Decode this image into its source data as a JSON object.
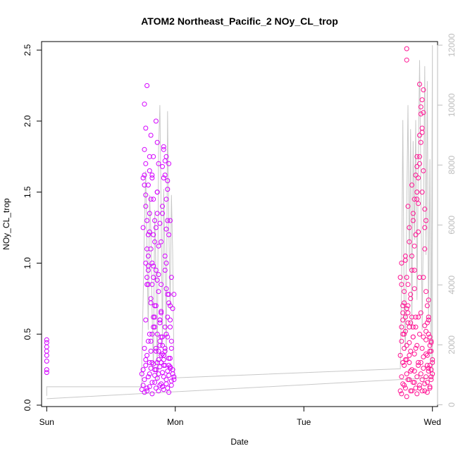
{
  "chart_data": {
    "type": "scatter",
    "title": "ATOM2 Northeast_Pacific_2 NOy_CL_trop",
    "xlabel": "Date",
    "ylabel": "NOy_CL_trop",
    "x_tick_labels": [
      "Sun",
      "Mon",
      "Tue",
      "Wed"
    ],
    "x_ticks": [
      0,
      1,
      2,
      3
    ],
    "xlim": [
      -0.04,
      3.04
    ],
    "ylim": [
      -0.01,
      2.56
    ],
    "y_ticks": [
      0.0,
      0.5,
      1.0,
      1.5,
      2.0,
      2.5
    ],
    "y_tick_labels": [
      "0.0",
      "0.5",
      "1.0",
      "1.5",
      "2.0",
      "2.5"
    ],
    "y2_ticks": [
      0,
      2000,
      4000,
      6000,
      8000,
      10000,
      12000
    ],
    "y2_tick_labels": [
      "0",
      "2000",
      "4000",
      "6000",
      "8000",
      "10000",
      "12000"
    ],
    "y2lim": [
      -60,
      12120
    ],
    "grid": false,
    "colors": {
      "series_1": "#d400ff",
      "series_2": "#ff1493",
      "altitude_line": "#c8c8c8",
      "right_axis": "#bdbdbd"
    },
    "series": [
      {
        "color": "#d400ff",
        "x": [
          0.0,
          0.0,
          0.0,
          0.0,
          0.0,
          0.0,
          0.0,
          0.0,
          0.74,
          0.75,
          0.76,
          0.77,
          0.78,
          0.79,
          0.8,
          0.81,
          0.82,
          0.83,
          0.84,
          0.85,
          0.86,
          0.87,
          0.88,
          0.89,
          0.9,
          0.91,
          0.92,
          0.93,
          0.94,
          0.95,
          0.96,
          0.97,
          0.98,
          0.99,
          0.74,
          0.75,
          0.76,
          0.77,
          0.78,
          0.79,
          0.8,
          0.81,
          0.82,
          0.83,
          0.84,
          0.85,
          0.86,
          0.87,
          0.88,
          0.89,
          0.9,
          0.91,
          0.92,
          0.93,
          0.94,
          0.95,
          0.96,
          0.97,
          0.98,
          0.99,
          0.75,
          0.76,
          0.77,
          0.78,
          0.79,
          0.8,
          0.81,
          0.82,
          0.83,
          0.84,
          0.85,
          0.86,
          0.87,
          0.88,
          0.89,
          0.9,
          0.91,
          0.92,
          0.93,
          0.94,
          0.95,
          0.96,
          0.97,
          0.98,
          0.99,
          0.75,
          0.76,
          0.77,
          0.78,
          0.79,
          0.8,
          0.81,
          0.82,
          0.83,
          0.84,
          0.85,
          0.86,
          0.87,
          0.88,
          0.89,
          0.9,
          0.91,
          0.92,
          0.93,
          0.94,
          0.95,
          0.96,
          0.97,
          0.76,
          0.77,
          0.78,
          0.79,
          0.8,
          0.81,
          0.82,
          0.83,
          0.84,
          0.85,
          0.86,
          0.87,
          0.88,
          0.89,
          0.9,
          0.91,
          0.92,
          0.93,
          0.94,
          0.95,
          0.96,
          0.97,
          0.76,
          0.77,
          0.78,
          0.79,
          0.8,
          0.81,
          0.82,
          0.83,
          0.84,
          0.85,
          0.86,
          0.87,
          0.88,
          0.89,
          0.9,
          0.91,
          0.92,
          0.93,
          0.94,
          0.95,
          0.96,
          0.76,
          0.77,
          0.78,
          0.79,
          0.8,
          0.81,
          0.82,
          0.83,
          0.84,
          0.85,
          0.86,
          0.87,
          0.88,
          0.89,
          0.9,
          0.91,
          0.92,
          0.93,
          0.94,
          0.95,
          0.96,
          0.77,
          0.78,
          0.79,
          0.8,
          0.81,
          0.82,
          0.83,
          0.84,
          0.85,
          0.86,
          0.87,
          0.88,
          0.89,
          0.9,
          0.91,
          0.92,
          0.93,
          0.94,
          0.95
        ],
        "y": [
          0.46,
          0.44,
          0.41,
          0.38,
          0.35,
          0.31,
          0.25,
          0.23,
          0.22,
          0.25,
          0.18,
          0.28,
          0.12,
          0.2,
          0.22,
          0.26,
          0.16,
          0.29,
          0.21,
          0.25,
          0.19,
          0.22,
          0.27,
          0.15,
          0.23,
          0.2,
          0.28,
          0.18,
          0.24,
          0.21,
          0.26,
          0.17,
          0.22,
          0.2,
          0.11,
          0.14,
          0.09,
          0.32,
          0.1,
          0.45,
          0.13,
          0.38,
          0.08,
          0.55,
          0.16,
          0.12,
          0.3,
          0.1,
          0.14,
          0.35,
          0.13,
          0.11,
          0.4,
          0.15,
          0.12,
          0.09,
          0.33,
          0.14,
          0.25,
          0.18,
          1.25,
          1.55,
          1.7,
          0.9,
          1.05,
          1.35,
          0.75,
          0.85,
          1.2,
          0.7,
          0.95,
          1.5,
          0.8,
          0.6,
          0.65,
          1.4,
          1.8,
          0.55,
          0.5,
          1.3,
          0.72,
          0.6,
          0.4,
          0.68,
          0.78,
          1.6,
          1.8,
          1.95,
          1.1,
          0.98,
          1.65,
          1.45,
          1.0,
          1.75,
          0.62,
          1.25,
          1.85,
          0.92,
          0.58,
          1.15,
          1.68,
          1.6,
          1.05,
          0.82,
          1.58,
          1.2,
          0.7,
          0.45,
          2.12,
          1.4,
          1.3,
          1.55,
          1.75,
          1.9,
          1.6,
          0.98,
          1.15,
          2.0,
          1.5,
          1.7,
          1.28,
          0.85,
          1.35,
          1.82,
          1.72,
          1.45,
          1.52,
          1.7,
          1.3,
          0.9,
          0.4,
          0.6,
          0.85,
          0.95,
          0.3,
          0.72,
          0.5,
          1.45,
          1.3,
          0.38,
          0.88,
          1.12,
          0.42,
          0.66,
          0.48,
          0.35,
          0.95,
          1.0,
          0.62,
          0.78,
          0.55,
          1.62,
          1.48,
          2.25,
          1.2,
          0.5,
          1.1,
          1.62,
          0.62,
          0.25,
          0.7,
          1.35,
          0.32,
          0.45,
          0.3,
          0.36,
          0.28,
          1.62,
          1.75,
          0.48,
          0.33,
          0.27,
          1.0,
          0.35,
          0.85,
          1.22,
          0.45,
          0.3,
          0.9,
          0.55,
          0.4,
          0.5,
          0.38,
          0.6,
          0.48,
          0.42,
          0.32,
          0.38,
          1.24,
          0.78,
          0.28
        ]
      },
      {
        "color": "#ff1493",
        "x": [
          2.75,
          2.76,
          2.77,
          2.78,
          2.79,
          2.8,
          2.81,
          2.82,
          2.83,
          2.84,
          2.85,
          2.86,
          2.87,
          2.88,
          2.89,
          2.9,
          2.91,
          2.92,
          2.93,
          2.94,
          2.95,
          2.96,
          2.97,
          2.98,
          2.99,
          3.0,
          2.75,
          2.76,
          2.77,
          2.78,
          2.79,
          2.8,
          2.81,
          2.82,
          2.83,
          2.84,
          2.85,
          2.86,
          2.87,
          2.88,
          2.89,
          2.9,
          2.91,
          2.92,
          2.93,
          2.94,
          2.95,
          2.96,
          2.97,
          2.98,
          2.99,
          3.0,
          2.75,
          2.76,
          2.77,
          2.78,
          2.79,
          2.8,
          2.81,
          2.82,
          2.83,
          2.84,
          2.85,
          2.86,
          2.87,
          2.88,
          2.89,
          2.9,
          2.91,
          2.92,
          2.93,
          2.94,
          2.95,
          2.96,
          2.97,
          2.98,
          2.99,
          3.0,
          2.76,
          2.77,
          2.78,
          2.79,
          2.8,
          2.81,
          2.82,
          2.83,
          2.84,
          2.85,
          2.86,
          2.87,
          2.88,
          2.89,
          2.9,
          2.91,
          2.92,
          2.93,
          2.94,
          2.95,
          2.96,
          2.97,
          2.98,
          2.99,
          2.76,
          2.77,
          2.78,
          2.79,
          2.8,
          2.81,
          2.82,
          2.83,
          2.84,
          2.85,
          2.86,
          2.87,
          2.88,
          2.89,
          2.9,
          2.91,
          2.92,
          2.93,
          2.94,
          2.95,
          2.96,
          2.97,
          2.98,
          2.99,
          2.76,
          2.78,
          2.8,
          2.82,
          2.84,
          2.86,
          2.88,
          2.9,
          2.92,
          2.94,
          2.96,
          2.98,
          2.77,
          2.79,
          2.81,
          2.83,
          2.85,
          2.87,
          2.89,
          2.91,
          2.93,
          2.95,
          2.97,
          2.99,
          2.8,
          2.8,
          2.82,
          2.86,
          2.88,
          2.9,
          2.9,
          2.92,
          2.93
        ],
        "y": [
          0.1,
          0.2,
          0.15,
          0.28,
          0.12,
          0.22,
          0.18,
          0.3,
          0.1,
          0.25,
          0.16,
          0.24,
          0.12,
          0.2,
          0.28,
          0.14,
          0.22,
          0.18,
          0.26,
          0.1,
          0.2,
          0.16,
          0.24,
          0.12,
          0.18,
          0.22,
          0.35,
          0.45,
          0.6,
          0.4,
          0.52,
          0.32,
          0.58,
          0.44,
          0.38,
          0.62,
          0.48,
          0.36,
          0.55,
          0.42,
          0.3,
          0.5,
          0.65,
          0.4,
          0.34,
          0.56,
          0.46,
          0.28,
          0.5,
          0.38,
          0.44,
          0.32,
          0.9,
          1.0,
          0.7,
          0.8,
          1.05,
          0.68,
          0.85,
          1.15,
          0.75,
          0.95,
          1.3,
          0.82,
          1.2,
          1.45,
          1.6,
          1.7,
          1.85,
          1.5,
          0.9,
          1.25,
          0.8,
          0.7,
          0.6,
          0.48,
          0.38,
          0.3,
          0.85,
          0.65,
          0.72,
          1.02,
          0.9,
          1.4,
          1.25,
          0.78,
          1.55,
          1.35,
          0.95,
          1.62,
          1.75,
          1.42,
          1.9,
          2.05,
          2.15,
          1.65,
          1.1,
          1.3,
          0.58,
          0.74,
          0.42,
          0.25,
          0.55,
          0.3,
          0.5,
          0.62,
          0.42,
          0.7,
          0.35,
          0.58,
          1.05,
          0.48,
          1.12,
          0.62,
          1.5,
          1.22,
          1.75,
          2.1,
          1.95,
          2.22,
          1.38,
          0.52,
          0.35,
          0.62,
          0.28,
          0.45,
          0.08,
          0.14,
          0.06,
          0.18,
          0.1,
          0.16,
          0.08,
          0.12,
          0.1,
          0.15,
          0.09,
          0.13,
          0.5,
          0.32,
          0.65,
          0.24,
          0.55,
          0.4,
          0.62,
          0.3,
          0.48,
          0.36,
          0.26,
          0.2,
          2.51,
          2.43,
          0.55,
          1.45,
          1.68,
          2.26,
          0.9,
          1.92,
          2.06
        ]
      }
    ],
    "altitude_series": {
      "color": "#c8c8c8",
      "x": [
        0.0,
        0.0,
        0.74,
        0.74,
        0.75,
        0.76,
        0.77,
        0.78,
        0.79,
        0.8,
        0.81,
        0.82,
        0.83,
        0.84,
        0.85,
        0.86,
        0.87,
        0.88,
        0.89,
        0.9,
        0.91,
        0.92,
        0.93,
        0.94,
        0.95,
        0.96,
        0.97,
        0.98,
        0.99,
        1.0,
        2.75,
        2.76,
        2.77,
        2.78,
        2.79,
        2.8,
        2.81,
        2.82,
        2.83,
        2.84,
        2.85,
        2.86,
        2.87,
        2.88,
        2.89,
        2.9,
        2.91,
        2.92,
        2.93,
        2.94,
        2.95,
        2.96,
        2.97,
        2.98,
        2.99,
        3.0,
        3.0,
        0.0
      ],
      "y": [
        300,
        600,
        600,
        1500,
        3500,
        6000,
        7800,
        5200,
        2500,
        7000,
        5800,
        3000,
        1200,
        6500,
        4200,
        800,
        8500,
        10000,
        6500,
        2000,
        7200,
        4800,
        1500,
        9800,
        6000,
        3200,
        7000,
        5000,
        1200,
        900,
        1200,
        4000,
        9500,
        3000,
        1800,
        6500,
        10000,
        4500,
        9200,
        2500,
        8800,
        5500,
        9500,
        3500,
        8000,
        11500,
        7500,
        2500,
        6000,
        11300,
        5000,
        10800,
        2800,
        8200,
        1500,
        12000,
        900,
        200
      ]
    }
  }
}
